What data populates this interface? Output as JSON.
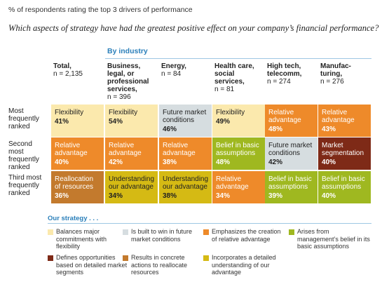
{
  "header": {
    "note": "% of respondents rating the top 3 drivers of performance",
    "question": "Which aspects of strategy have had the greatest positive effect on your company’s financial performance?",
    "group_label": "By industry"
  },
  "colors": {
    "flexibility": "#fbe9ad",
    "future_market": "#d6dde0",
    "relative_advantage": "#ee8a2a",
    "belief": "#9fb820",
    "segmentation": "#7e2a17",
    "reallocation": "#c37a2d",
    "understanding": "#d5ba14",
    "accent": "#2a7fba"
  },
  "chart_data": {
    "type": "table",
    "columns": [
      {
        "name": "Total,",
        "n": "n = 2,135"
      },
      {
        "name": "Business, legal, or professional services,",
        "n": "n = 396"
      },
      {
        "name": "Energy,",
        "n": "n = 84"
      },
      {
        "name": "Health care, social services,",
        "n": "n = 81"
      },
      {
        "name": "High tech, telecomm,",
        "n": "n = 274"
      },
      {
        "name": "Manufac- turing,",
        "n": "n = 276"
      }
    ],
    "rows": [
      {
        "label": "Most frequently ranked",
        "cells": [
          {
            "label": "Flexibility",
            "value": "41%",
            "category": "flexibility"
          },
          {
            "label": "Flexibility",
            "value": "54%",
            "category": "flexibility"
          },
          {
            "label": "Future market conditions",
            "value": "46%",
            "category": "future_market"
          },
          {
            "label": "Flexibility",
            "value": "49%",
            "category": "flexibility"
          },
          {
            "label": "Relative advantage",
            "value": "48%",
            "category": "relative_advantage"
          },
          {
            "label": "Relative advantage",
            "value": "43%",
            "category": "relative_advantage"
          }
        ]
      },
      {
        "label": "Second most frequently ranked",
        "cells": [
          {
            "label": "Relative advantage",
            "value": "40%",
            "category": "relative_advantage"
          },
          {
            "label": "Relative advantage",
            "value": "42%",
            "category": "relative_advantage"
          },
          {
            "label": "Relative advantage",
            "value": "38%",
            "category": "relative_advantage"
          },
          {
            "label": "Belief in basic assumptions",
            "value": "48%",
            "category": "belief"
          },
          {
            "label": "Future market conditions",
            "value": "42%",
            "category": "future_market"
          },
          {
            "label": "Market segmentation",
            "value": "40%",
            "category": "segmentation"
          }
        ]
      },
      {
        "label": "Third most frequently ranked",
        "cells": [
          {
            "label": "Reallocation of resources",
            "value": "36%",
            "category": "reallocation"
          },
          {
            "label": "Understanding our advantage",
            "value": "34%",
            "category": "understanding"
          },
          {
            "label": "Understanding our advantage",
            "value": "38%",
            "category": "understanding"
          },
          {
            "label": "Relative advantage",
            "value": "34%",
            "category": "relative_advantage"
          },
          {
            "label": "Belief in basic assumptions",
            "value": "39%",
            "category": "belief"
          },
          {
            "label": "Belief in basic assumptions",
            "value": "40%",
            "category": "belief"
          }
        ]
      }
    ],
    "legend": {
      "title": "Our strategy . . .",
      "items": [
        {
          "category": "flexibility",
          "text": "Balances major commitments with flexibility"
        },
        {
          "category": "future_market",
          "text": "Is built to win in future market conditions"
        },
        {
          "category": "relative_advantage",
          "text": "Emphasizes the creation of relative advantage"
        },
        {
          "category": "belief",
          "text": "Arises from management’s belief in its basic assumptions"
        },
        {
          "category": "segmentation",
          "text": "Defines opportunities based on detailed market segments"
        },
        {
          "category": "reallocation",
          "text": "Results in concrete actions to reallocate resources"
        },
        {
          "category": "understanding",
          "text": "Incorporates a detailed understanding of our advantage"
        }
      ]
    }
  }
}
